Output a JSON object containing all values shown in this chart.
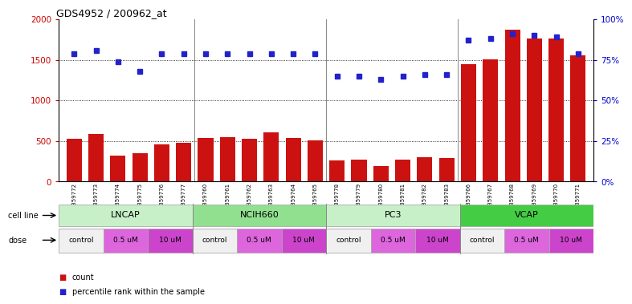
{
  "title": "GDS4952 / 200962_at",
  "samples": [
    "GSM1359772",
    "GSM1359773",
    "GSM1359774",
    "GSM1359775",
    "GSM1359776",
    "GSM1359777",
    "GSM1359760",
    "GSM1359761",
    "GSM1359762",
    "GSM1359763",
    "GSM1359764",
    "GSM1359765",
    "GSM1359778",
    "GSM1359779",
    "GSM1359780",
    "GSM1359781",
    "GSM1359782",
    "GSM1359783",
    "GSM1359766",
    "GSM1359767",
    "GSM1359768",
    "GSM1359769",
    "GSM1359770",
    "GSM1359771"
  ],
  "counts": [
    530,
    590,
    320,
    350,
    460,
    480,
    540,
    550,
    530,
    610,
    540,
    510,
    265,
    270,
    195,
    270,
    300,
    295,
    1450,
    1510,
    1870,
    1760,
    1760,
    1560
  ],
  "percentile_ranks": [
    79,
    81,
    74,
    68,
    79,
    79,
    79,
    79,
    79,
    79,
    79,
    79,
    65,
    65,
    63,
    65,
    66,
    66,
    87,
    88,
    91,
    90,
    89,
    79
  ],
  "cell_lines": [
    {
      "name": "LNCAP",
      "start": 0,
      "end": 6,
      "color": "#c8f0c8"
    },
    {
      "name": "NCIH660",
      "start": 6,
      "end": 12,
      "color": "#90e090"
    },
    {
      "name": "PC3",
      "start": 12,
      "end": 18,
      "color": "#c8f0c8"
    },
    {
      "name": "VCAP",
      "start": 18,
      "end": 24,
      "color": "#44cc44"
    }
  ],
  "dose_groups": [
    {
      "label": "control",
      "start": 0,
      "end": 2,
      "color": "#f0f0f0"
    },
    {
      "label": "0.5 uM",
      "start": 2,
      "end": 4,
      "color": "#dd66dd"
    },
    {
      "label": "10 uM",
      "start": 4,
      "end": 6,
      "color": "#cc44cc"
    },
    {
      "label": "control",
      "start": 6,
      "end": 8,
      "color": "#f0f0f0"
    },
    {
      "label": "0.5 uM",
      "start": 8,
      "end": 10,
      "color": "#dd66dd"
    },
    {
      "label": "10 uM",
      "start": 10,
      "end": 12,
      "color": "#cc44cc"
    },
    {
      "label": "control",
      "start": 12,
      "end": 14,
      "color": "#f0f0f0"
    },
    {
      "label": "0.5 uM",
      "start": 14,
      "end": 16,
      "color": "#dd66dd"
    },
    {
      "label": "10 uM",
      "start": 16,
      "end": 18,
      "color": "#cc44cc"
    },
    {
      "label": "control",
      "start": 18,
      "end": 20,
      "color": "#f0f0f0"
    },
    {
      "label": "0.5 uM",
      "start": 20,
      "end": 22,
      "color": "#dd66dd"
    },
    {
      "label": "10 uM",
      "start": 22,
      "end": 24,
      "color": "#cc44cc"
    }
  ],
  "bar_color": "#cc1111",
  "dot_color": "#2222cc",
  "ylim_left": [
    0,
    2000
  ],
  "ylim_right": [
    0,
    100
  ],
  "yticks_left": [
    0,
    500,
    1000,
    1500,
    2000
  ],
  "yticks_right": [
    0,
    25,
    50,
    75,
    100
  ],
  "grid_values": [
    500,
    1000,
    1500
  ],
  "background_color": "#ffffff",
  "tick_color_left": "#cc0000",
  "tick_color_right": "#0000cc",
  "xticklabel_bg": "#d8d8d8"
}
